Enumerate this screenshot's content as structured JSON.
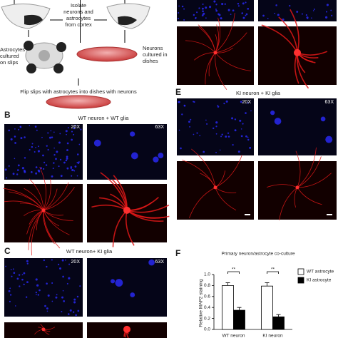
{
  "panel_a": {
    "isolate": [
      "Isolate",
      "neurons and",
      "astrocytes",
      "from cortex"
    ],
    "astrocytes": [
      "Astrocytes",
      "cultured",
      "on slips"
    ],
    "neurons": [
      "Neurons",
      "cultured in",
      "dishes"
    ],
    "flip": "Flip slips with astrocytes into dishes with neurons"
  },
  "panel_b": {
    "label": "B",
    "title": "WT  neuron + WT glia",
    "mag_low": "20X",
    "mag_high": "63X"
  },
  "panel_c": {
    "label": "C",
    "title": "WT  neuron+ KI glia",
    "mag_low": "20X",
    "mag_high": "63X"
  },
  "panel_e": {
    "label": "E",
    "title": "KI neuron + KI glia",
    "mag_low": "20X",
    "mag_high": "63X"
  },
  "chart_data": {
    "type": "bar",
    "label": "F",
    "title": "Primary neuron/astrocyte co-culture",
    "y_label": "Relative MAP2 staining",
    "categories": [
      "WT neuron",
      "KI neuron"
    ],
    "series": [
      {
        "name": "WT astrocyte",
        "color": "#ffffff",
        "values": [
          0.8,
          0.79
        ],
        "errors": [
          0.05,
          0.06
        ]
      },
      {
        "name": "KI astrocyte",
        "color": "#000000",
        "values": [
          0.35,
          0.23
        ],
        "errors": [
          0.05,
          0.04
        ]
      }
    ],
    "annotations": [
      "**",
      "**"
    ],
    "ylim": [
      0,
      1
    ],
    "yticks": [
      {
        "value": 0,
        "label": "0.0"
      },
      0.2,
      0.4,
      0.6,
      0.8,
      {
        "value": 1,
        "label": "1.0"
      }
    ]
  }
}
